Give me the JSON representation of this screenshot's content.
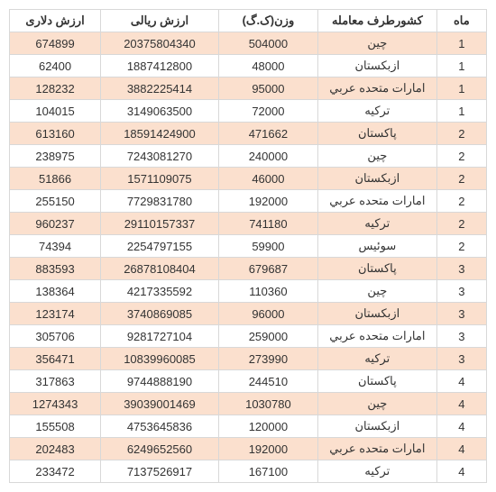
{
  "table": {
    "columns": [
      "ماه",
      "کشورطرف معامله",
      "وزن(ک.گ)",
      "ارزش ریالی",
      "ارزش دلاری"
    ],
    "column_widths": [
      "48px",
      "140px",
      "110px",
      "130px",
      "100px"
    ],
    "stripe_color": "#fbe0ce",
    "plain_color": "#ffffff",
    "border_color": "#d8d8d8",
    "text_color": "#333333",
    "font_size": 13,
    "rows": [
      {
        "month": "1",
        "country": "چین",
        "weight": "504000",
        "rial": "20375804340",
        "dollar": "674899",
        "stripe": true
      },
      {
        "month": "1",
        "country": "ازبکستان",
        "weight": "48000",
        "rial": "1887412800",
        "dollar": "62400",
        "stripe": false
      },
      {
        "month": "1",
        "country": "امارات متحده عربي",
        "weight": "95000",
        "rial": "3882225414",
        "dollar": "128232",
        "stripe": true
      },
      {
        "month": "1",
        "country": "ترکيه",
        "weight": "72000",
        "rial": "3149063500",
        "dollar": "104015",
        "stripe": false
      },
      {
        "month": "2",
        "country": "پاکستان",
        "weight": "471662",
        "rial": "18591424900",
        "dollar": "613160",
        "stripe": true
      },
      {
        "month": "2",
        "country": "چین",
        "weight": "240000",
        "rial": "7243081270",
        "dollar": "238975",
        "stripe": false
      },
      {
        "month": "2",
        "country": "ازبکستان",
        "weight": "46000",
        "rial": "1571109075",
        "dollar": "51866",
        "stripe": true
      },
      {
        "month": "2",
        "country": "امارات متحده عربي",
        "weight": "192000",
        "rial": "7729831780",
        "dollar": "255150",
        "stripe": false
      },
      {
        "month": "2",
        "country": "ترکيه",
        "weight": "741180",
        "rial": "29110157337",
        "dollar": "960237",
        "stripe": true
      },
      {
        "month": "2",
        "country": "سوئيس",
        "weight": "59900",
        "rial": "2254797155",
        "dollar": "74394",
        "stripe": false
      },
      {
        "month": "3",
        "country": "پاکستان",
        "weight": "679687",
        "rial": "26878108404",
        "dollar": "883593",
        "stripe": true
      },
      {
        "month": "3",
        "country": "چین",
        "weight": "110360",
        "rial": "4217335592",
        "dollar": "138364",
        "stripe": false
      },
      {
        "month": "3",
        "country": "ازبکستان",
        "weight": "96000",
        "rial": "3740869085",
        "dollar": "123174",
        "stripe": true
      },
      {
        "month": "3",
        "country": "امارات متحده عربي",
        "weight": "259000",
        "rial": "9281727104",
        "dollar": "305706",
        "stripe": false
      },
      {
        "month": "3",
        "country": "ترکيه",
        "weight": "273990",
        "rial": "10839960085",
        "dollar": "356471",
        "stripe": true
      },
      {
        "month": "4",
        "country": "پاکستان",
        "weight": "244510",
        "rial": "9744888190",
        "dollar": "317863",
        "stripe": false
      },
      {
        "month": "4",
        "country": "چین",
        "weight": "1030780",
        "rial": "39039001469",
        "dollar": "1274343",
        "stripe": true
      },
      {
        "month": "4",
        "country": "ازبکستان",
        "weight": "120000",
        "rial": "4753645836",
        "dollar": "155508",
        "stripe": false
      },
      {
        "month": "4",
        "country": "امارات متحده عربي",
        "weight": "192000",
        "rial": "6249652560",
        "dollar": "202483",
        "stripe": true
      },
      {
        "month": "4",
        "country": "ترکيه",
        "weight": "167100",
        "rial": "7137526917",
        "dollar": "233472",
        "stripe": false
      }
    ]
  }
}
